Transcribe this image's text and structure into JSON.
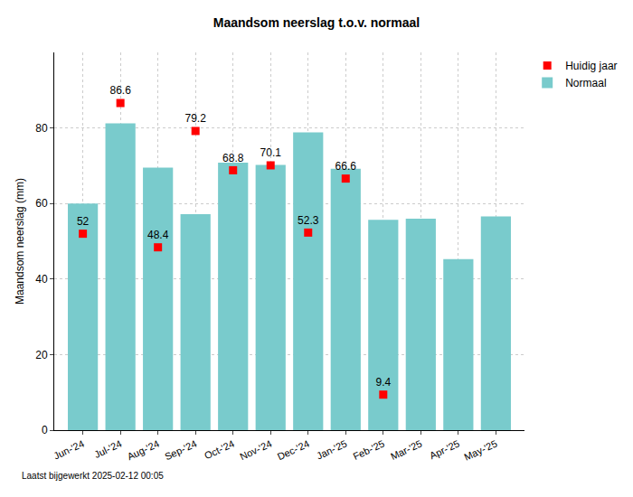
{
  "chart_data": {
    "type": "bar",
    "title": "Maandsom neerslag t.o.v. normaal",
    "y_label": "Maandsom neerslag (mm)",
    "footnote": "Laatst bijgewerkt 2025-02-12 00:05",
    "categories": [
      "Jun-'24",
      "Jul-'24",
      "Aug-'24",
      "Sep-'24",
      "Oct-'24",
      "Nov-'24",
      "Dec-'24",
      "Jan-'25",
      "Feb-'25",
      "Mar-'25",
      "Apr-'25",
      "May-'25"
    ],
    "series": [
      {
        "name": "Normaal",
        "type": "bar",
        "color": "#79CBCC",
        "values": [
          60,
          81.2,
          69.5,
          57.2,
          70.8,
          70.2,
          78.8,
          69.2,
          55.7,
          56,
          45.3,
          56.6
        ]
      },
      {
        "name": "Huidig jaar",
        "type": "scatter",
        "marker": "square",
        "color": "#FF0000",
        "data_labels": true,
        "values": [
          52,
          86.6,
          48.4,
          79.2,
          68.8,
          70.1,
          52.3,
          66.6,
          9.4,
          null,
          null,
          null
        ]
      }
    ],
    "ylim": [
      0,
      100
    ],
    "yticks": [
      0,
      20,
      40,
      60,
      80
    ],
    "grid": true,
    "legend": "top-right"
  }
}
